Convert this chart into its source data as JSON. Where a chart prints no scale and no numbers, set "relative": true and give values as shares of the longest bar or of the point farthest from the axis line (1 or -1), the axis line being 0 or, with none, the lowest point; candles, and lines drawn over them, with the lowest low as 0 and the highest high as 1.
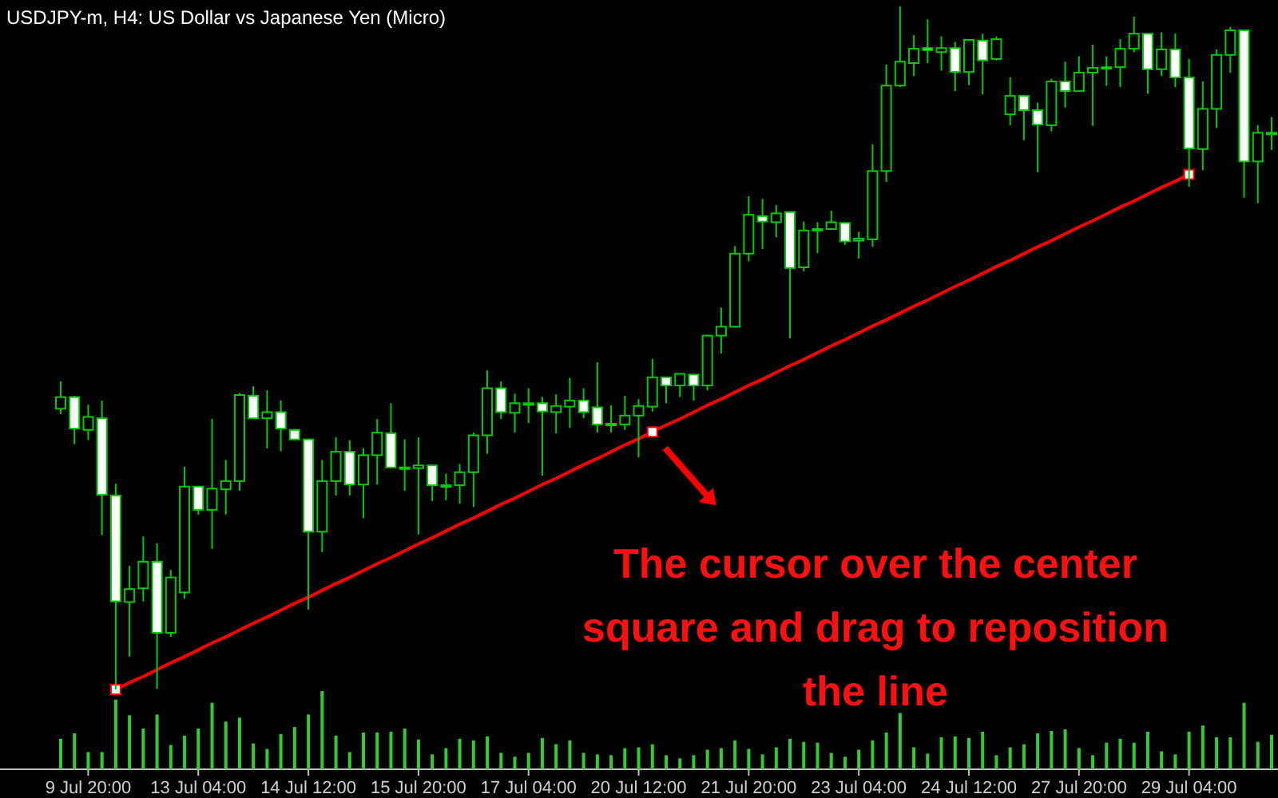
{
  "chart_data": [
    {
      "type": "candlestick",
      "title": "USDJPY-m, H4:  US Dollar vs Japanese Yen (Micro)",
      "relative": true,
      "color": "#00cc00",
      "categories": [
        null,
        null,
        "9 Jul 20:00",
        null,
        null,
        null,
        null,
        null,
        null,
        null,
        "13 Jul 04:00",
        null,
        null,
        null,
        null,
        null,
        null,
        null,
        "14 Jul 12:00",
        null,
        null,
        null,
        null,
        null,
        null,
        null,
        "15 Jul 20:00",
        null,
        null,
        null,
        null,
        null,
        null,
        null,
        "17 Jul 04:00",
        null,
        null,
        null,
        null,
        null,
        null,
        null,
        "20 Jul 12:00",
        null,
        null,
        null,
        null,
        null,
        null,
        null,
        "21 Jul 20:00",
        null,
        null,
        null,
        null,
        null,
        null,
        null,
        "23 Jul 04:00",
        null,
        null,
        null,
        null,
        null,
        null,
        null,
        "24 Jul 12:00",
        null,
        null,
        null,
        null,
        null,
        null,
        null,
        "27 Jul 20:00",
        null,
        null,
        null,
        null,
        null,
        null,
        null,
        "29 Jul 04:00",
        null,
        null,
        null,
        null,
        null,
        null
      ],
      "ohlc": [
        [
          0.411,
          0.451,
          0.403,
          0.428
        ],
        [
          0.428,
          0.43,
          0.359,
          0.382
        ],
        [
          0.38,
          0.417,
          0.365,
          0.399
        ],
        [
          0.397,
          0.423,
          0.226,
          0.285
        ],
        [
          0.284,
          0.301,
          0,
          0.129
        ],
        [
          0.128,
          0.181,
          0.048,
          0.147
        ],
        [
          0.148,
          0.224,
          0.129,
          0.187
        ],
        [
          0.187,
          0.214,
          0.001,
          0.083
        ],
        [
          0.083,
          0.175,
          0.077,
          0.164
        ],
        [
          0.142,
          0.326,
          0.133,
          0.297
        ],
        [
          0.297,
          0.298,
          0.256,
          0.263
        ],
        [
          0.263,
          0.396,
          0.206,
          0.294
        ],
        [
          0.293,
          0.336,
          0.256,
          0.305
        ],
        [
          0.305,
          0.434,
          0.291,
          0.431
        ],
        [
          0.43,
          0.444,
          0.396,
          0.397
        ],
        [
          0.397,
          0.438,
          0.353,
          0.406
        ],
        [
          0.406,
          0.423,
          0.349,
          0.382
        ],
        [
          0.38,
          0.381,
          0.365,
          0.366
        ],
        [
          0.366,
          0.367,
          0.117,
          0.231
        ],
        [
          0.231,
          0.336,
          0.201,
          0.305
        ],
        [
          0.305,
          0.369,
          0.284,
          0.348
        ],
        [
          0.348,
          0.365,
          0.284,
          0.3
        ],
        [
          0.3,
          0.353,
          0.251,
          0.343
        ],
        [
          0.343,
          0.396,
          0.3,
          0.376
        ],
        [
          0.375,
          0.419,
          0.324,
          0.325
        ],
        [
          0.325,
          0.366,
          0.291,
          0.325
        ],
        [
          0.324,
          0.369,
          0.227,
          0.328
        ],
        [
          0.328,
          0.329,
          0.276,
          0.299
        ],
        [
          0.299,
          0.316,
          0.277,
          0.299
        ],
        [
          0.299,
          0.33,
          0.272,
          0.318
        ],
        [
          0.318,
          0.376,
          0.267,
          0.372
        ],
        [
          0.372,
          0.467,
          0.345,
          0.441
        ],
        [
          0.441,
          0.451,
          0.396,
          0.406
        ],
        [
          0.405,
          0.433,
          0.376,
          0.419
        ],
        [
          0.419,
          0.441,
          0.39,
          0.419
        ],
        [
          0.419,
          0.428,
          0.313,
          0.407
        ],
        [
          0.406,
          0.432,
          0.375,
          0.415
        ],
        [
          0.414,
          0.456,
          0.383,
          0.423
        ],
        [
          0.423,
          0.441,
          0.397,
          0.406
        ],
        [
          0.413,
          0.479,
          0.376,
          0.388
        ],
        [
          0.389,
          0.416,
          0.376,
          0.389
        ],
        [
          0.388,
          0.43,
          0.38,
          0.401
        ],
        [
          0.401,
          0.425,
          0.34,
          0.415
        ],
        [
          0.414,
          0.484,
          0.407,
          0.457
        ],
        [
          0.457,
          0.458,
          0.419,
          0.445
        ],
        [
          0.445,
          0.463,
          0.428,
          0.462
        ],
        [
          0.461,
          0.462,
          0.423,
          0.445
        ],
        [
          0.445,
          0.519,
          0.438,
          0.518
        ],
        [
          0.518,
          0.559,
          0.492,
          0.531
        ],
        [
          0.531,
          0.649,
          0.53,
          0.638
        ],
        [
          0.638,
          0.722,
          0.627,
          0.695
        ],
        [
          0.693,
          0.718,
          0.645,
          0.685
        ],
        [
          0.684,
          0.709,
          0.662,
          0.697
        ],
        [
          0.699,
          0.7,
          0.514,
          0.617
        ],
        [
          0.618,
          0.685,
          0.612,
          0.672
        ],
        [
          0.674,
          0.684,
          0.639,
          0.674
        ],
        [
          0.674,
          0.701,
          0.673,
          0.684
        ],
        [
          0.683,
          0.684,
          0.651,
          0.656
        ],
        [
          0.657,
          0.67,
          0.631,
          0.66
        ],
        [
          0.659,
          0.798,
          0.648,
          0.759
        ],
        [
          0.759,
          0.915,
          0.743,
          0.884
        ],
        [
          0.884,
          1,
          0.882,
          0.919
        ],
        [
          0.917,
          0.958,
          0.898,
          0.938
        ],
        [
          0.939,
          0.981,
          0.917,
          0.936
        ],
        [
          0.933,
          0.956,
          0.906,
          0.939
        ],
        [
          0.939,
          0.948,
          0.876,
          0.904
        ],
        [
          0.904,
          0.952,
          0.885,
          0.951
        ],
        [
          0.95,
          0.96,
          0.871,
          0.921
        ],
        [
          0.923,
          0.956,
          0.921,
          0.952
        ],
        [
          0.842,
          0.896,
          0.826,
          0.869
        ],
        [
          0.869,
          0.87,
          0.804,
          0.848
        ],
        [
          0.848,
          0.859,
          0.757,
          0.827
        ],
        [
          0.826,
          0.894,
          0.817,
          0.89
        ],
        [
          0.89,
          0.919,
          0.852,
          0.876
        ],
        [
          0.876,
          0.927,
          0.875,
          0.903
        ],
        [
          0.903,
          0.944,
          0.825,
          0.91
        ],
        [
          0.911,
          0.927,
          0.884,
          0.911
        ],
        [
          0.911,
          0.952,
          0.882,
          0.938
        ],
        [
          0.938,
          0.985,
          0.933,
          0.96
        ],
        [
          0.96,
          0.961,
          0.872,
          0.908
        ],
        [
          0.908,
          0.962,
          0.898,
          0.937
        ],
        [
          0.937,
          0.96,
          0.882,
          0.896
        ],
        [
          0.896,
          0.923,
          0.736,
          0.792
        ],
        [
          0.791,
          0.89,
          0.76,
          0.85
        ],
        [
          0.85,
          0.937,
          0.822,
          0.929
        ],
        [
          0.929,
          0.97,
          0.903,
          0.965
        ],
        [
          0.965,
          0.966,
          0.72,
          0.773
        ],
        [
          0.773,
          0.826,
          0.712,
          0.815
        ],
        [
          0.815,
          0.838,
          0.79,
          0.815
        ]
      ],
      "series": [
        {
          "type": "line",
          "color": "#ff0000",
          "values": [
            null,
            null,
            null,
            null,
            0,
            0.01,
            0.019,
            0.029,
            0.039,
            0.048,
            0.058,
            0.068,
            0.077,
            0.087,
            0.097,
            0.106,
            0.116,
            0.126,
            0.135,
            0.145,
            0.155,
            0.164,
            0.174,
            0.184,
            0.193,
            0.203,
            0.213,
            0.222,
            0.232,
            0.242,
            0.251,
            0.261,
            0.271,
            0.28,
            0.29,
            0.3,
            0.309,
            0.319,
            0.329,
            0.338,
            0.348,
            0.358,
            0.367,
            0.377,
            0.387,
            0.396,
            0.406,
            0.416,
            0.425,
            0.435,
            0.445,
            0.454,
            0.464,
            0.474,
            0.483,
            0.493,
            0.503,
            0.512,
            0.522,
            0.532,
            0.541,
            0.551,
            0.561,
            0.57,
            0.58,
            0.59,
            0.599,
            0.609,
            0.619,
            0.628,
            0.638,
            0.648,
            0.657,
            0.667,
            0.677,
            0.686,
            0.696,
            0.706,
            0.715,
            0.725,
            0.735,
            0.744,
            0.754,
            null,
            null,
            null,
            null,
            null,
            null
          ]
        }
      ],
      "annotations": [
        "The cursor over the center square and drag to reposition the line"
      ]
    },
    {
      "type": "bar",
      "relative": true,
      "color": "#33cc33",
      "categories": [
        null,
        null,
        null,
        null,
        null,
        null,
        null,
        null,
        null,
        null,
        null,
        null,
        null,
        null,
        null,
        null,
        null,
        null,
        null,
        null,
        null,
        null,
        null,
        null,
        null,
        null,
        null,
        null,
        null,
        null,
        null,
        null,
        null,
        null,
        null,
        null,
        null,
        null,
        null,
        null,
        null,
        null,
        null,
        null,
        null,
        null,
        null,
        null,
        null,
        null,
        null,
        null,
        null,
        null,
        null,
        null,
        null,
        null,
        null,
        null,
        null,
        null,
        null,
        null,
        null,
        null,
        null,
        null,
        null,
        null,
        null,
        null,
        null,
        null,
        null,
        null,
        null,
        null,
        null,
        null,
        null,
        null,
        null,
        null,
        null,
        null,
        null,
        null,
        null
      ],
      "values": [
        0.39,
        0.46,
        0.22,
        0.22,
        0.89,
        0.69,
        0.52,
        0.7,
        0.31,
        0.43,
        0.52,
        0.85,
        0.61,
        0.66,
        0.33,
        0.26,
        0.45,
        0.54,
        0.7,
        1,
        0.43,
        0.22,
        0.47,
        0.47,
        0.48,
        0.52,
        0.38,
        0.19,
        0.27,
        0.39,
        0.37,
        0.42,
        0.21,
        0.16,
        0.21,
        0.4,
        0.32,
        0.37,
        0.21,
        0.19,
        0.18,
        0.27,
        0.28,
        0.32,
        0.18,
        0.14,
        0.18,
        0.25,
        0.27,
        0.37,
        0.26,
        0.19,
        0.28,
        0.39,
        0.35,
        0.34,
        0.21,
        0.16,
        0.25,
        0.37,
        0.47,
        0.72,
        0.28,
        0.2,
        0.41,
        0.42,
        0.4,
        0.48,
        0.18,
        0.28,
        0.32,
        0.46,
        0.49,
        0.51,
        0.27,
        0.18,
        0.34,
        0.39,
        0.34,
        0.48,
        0.23,
        0.19,
        0.48,
        0.56,
        0.41,
        0.41,
        0.85,
        0.35,
        0.44
      ]
    }
  ]
}
